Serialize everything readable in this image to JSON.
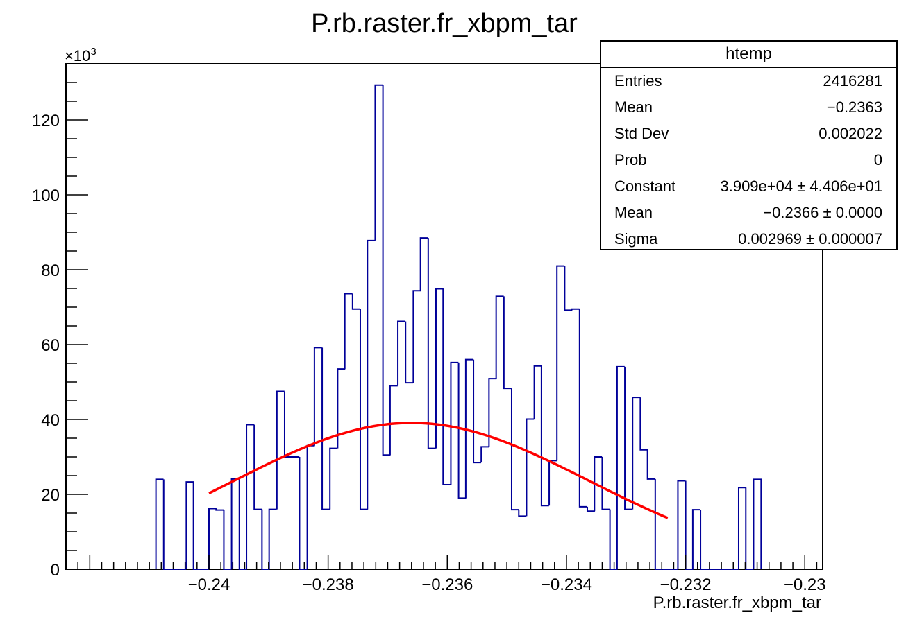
{
  "chart_data": {
    "type": "histogram",
    "title": "P.rb.raster.fr_xbpm_tar",
    "xlabel": "P.rb.raster.fr_xbpm_tar",
    "ylabel": "",
    "y_exponent_label": {
      "prefix": "×10",
      "exponent": "3"
    },
    "xlim": [
      -0.2424,
      -0.2297
    ],
    "ylim": [
      0,
      135
    ],
    "x_ticks": [
      {
        "value": -0.24,
        "label": "−0.24"
      },
      {
        "value": -0.238,
        "label": "−0.238"
      },
      {
        "value": -0.236,
        "label": "−0.236"
      },
      {
        "value": -0.234,
        "label": "−0.234"
      },
      {
        "value": -0.232,
        "label": "−0.232"
      },
      {
        "value": -0.23,
        "label": "−0.23"
      }
    ],
    "y_ticks": [
      {
        "value": 0,
        "label": "0"
      },
      {
        "value": 20,
        "label": "20"
      },
      {
        "value": 40,
        "label": "40"
      },
      {
        "value": 60,
        "label": "60"
      },
      {
        "value": 80,
        "label": "80"
      },
      {
        "value": 100,
        "label": "100"
      },
      {
        "value": 120,
        "label": "120"
      }
    ],
    "bin_width": 0.000127,
    "bins": [
      {
        "x0": -0.24089,
        "y": 24
      },
      {
        "x0": -0.24076,
        "y": 0
      },
      {
        "x0": -0.24064,
        "y": 0
      },
      {
        "x0": -0.24051,
        "y": 0
      },
      {
        "x0": -0.24038,
        "y": 23.3
      },
      {
        "x0": -0.24026,
        "y": 0
      },
      {
        "x0": -0.24013,
        "y": 0
      },
      {
        "x0": -0.24,
        "y": 16.2
      },
      {
        "x0": -0.23988,
        "y": 15.8
      },
      {
        "x0": -0.23975,
        "y": 0
      },
      {
        "x0": -0.23962,
        "y": 24.1
      },
      {
        "x0": -0.23949,
        "y": 0
      },
      {
        "x0": -0.23937,
        "y": 38.6
      },
      {
        "x0": -0.23924,
        "y": 16
      },
      {
        "x0": -0.23911,
        "y": 0
      },
      {
        "x0": -0.23899,
        "y": 16
      },
      {
        "x0": -0.23886,
        "y": 47.5
      },
      {
        "x0": -0.23873,
        "y": 30
      },
      {
        "x0": -0.23861,
        "y": 30
      },
      {
        "x0": -0.23848,
        "y": 0
      },
      {
        "x0": -0.23835,
        "y": 33
      },
      {
        "x0": -0.23823,
        "y": 59.2
      },
      {
        "x0": -0.2381,
        "y": 16
      },
      {
        "x0": -0.23797,
        "y": 32.3
      },
      {
        "x0": -0.23784,
        "y": 53.5
      },
      {
        "x0": -0.23772,
        "y": 73.6
      },
      {
        "x0": -0.23759,
        "y": 69.5
      },
      {
        "x0": -0.23746,
        "y": 16
      },
      {
        "x0": -0.23734,
        "y": 87.8
      },
      {
        "x0": -0.23721,
        "y": 129.3
      },
      {
        "x0": -0.23708,
        "y": 30.5
      },
      {
        "x0": -0.23696,
        "y": 49
      },
      {
        "x0": -0.23683,
        "y": 66.2
      },
      {
        "x0": -0.2367,
        "y": 49.8
      },
      {
        "x0": -0.23657,
        "y": 74.4
      },
      {
        "x0": -0.23645,
        "y": 88.5
      },
      {
        "x0": -0.23632,
        "y": 32.3
      },
      {
        "x0": -0.23619,
        "y": 74.9
      },
      {
        "x0": -0.23607,
        "y": 22.6
      },
      {
        "x0": -0.23594,
        "y": 55.2
      },
      {
        "x0": -0.23581,
        "y": 19
      },
      {
        "x0": -0.23569,
        "y": 56
      },
      {
        "x0": -0.23556,
        "y": 28.5
      },
      {
        "x0": -0.23543,
        "y": 32.7
      },
      {
        "x0": -0.2353,
        "y": 50.9
      },
      {
        "x0": -0.23518,
        "y": 72.9
      },
      {
        "x0": -0.23505,
        "y": 48.3
      },
      {
        "x0": -0.23492,
        "y": 15.9
      },
      {
        "x0": -0.2348,
        "y": 14.2
      },
      {
        "x0": -0.23467,
        "y": 40.1
      },
      {
        "x0": -0.23454,
        "y": 54.3
      },
      {
        "x0": -0.23442,
        "y": 17
      },
      {
        "x0": -0.23429,
        "y": 29
      },
      {
        "x0": -0.23416,
        "y": 81
      },
      {
        "x0": -0.23403,
        "y": 69.2
      },
      {
        "x0": -0.23391,
        "y": 69.5
      },
      {
        "x0": -0.23378,
        "y": 16.7
      },
      {
        "x0": -0.23365,
        "y": 15.5
      },
      {
        "x0": -0.23353,
        "y": 30
      },
      {
        "x0": -0.2334,
        "y": 16
      },
      {
        "x0": -0.23327,
        "y": 0
      },
      {
        "x0": -0.23315,
        "y": 54.1
      },
      {
        "x0": -0.23302,
        "y": 16
      },
      {
        "x0": -0.23289,
        "y": 45.9
      },
      {
        "x0": -0.23276,
        "y": 31.9
      },
      {
        "x0": -0.23264,
        "y": 24.1
      },
      {
        "x0": -0.23251,
        "y": 0
      },
      {
        "x0": -0.23238,
        "y": 0
      },
      {
        "x0": -0.23226,
        "y": 0
      },
      {
        "x0": -0.23213,
        "y": 23.6
      },
      {
        "x0": -0.232,
        "y": 0
      },
      {
        "x0": -0.23188,
        "y": 15.9
      },
      {
        "x0": -0.23175,
        "y": 0
      },
      {
        "x0": -0.23162,
        "y": 0
      },
      {
        "x0": -0.23149,
        "y": 0
      },
      {
        "x0": -0.23137,
        "y": 0
      },
      {
        "x0": -0.23124,
        "y": 0
      },
      {
        "x0": -0.23111,
        "y": 21.8
      },
      {
        "x0": -0.23099,
        "y": 0
      },
      {
        "x0": -0.23086,
        "y": 24
      }
    ],
    "fit": {
      "name": "gaus",
      "constant": 39.09,
      "mean": -0.2366,
      "sigma": 0.002969,
      "x_range": [
        -0.24,
        -0.2323
      ],
      "color": "#ff0000"
    },
    "histogram_color": "#000099"
  },
  "stats_box": {
    "title": "htemp",
    "rows": [
      {
        "name": "Entries",
        "value": "2416281"
      },
      {
        "name": "Mean",
        "value": "−0.2363"
      },
      {
        "name": "Std Dev",
        "value": "0.002022"
      },
      {
        "name": "Prob",
        "value": "0"
      },
      {
        "name": "Constant",
        "value": "3.909e+04 ± 4.406e+01"
      },
      {
        "name": "Mean",
        "value": "−0.2366 ± 0.0000"
      },
      {
        "name": "Sigma",
        "value": "0.002969 ± 0.000007"
      }
    ]
  }
}
